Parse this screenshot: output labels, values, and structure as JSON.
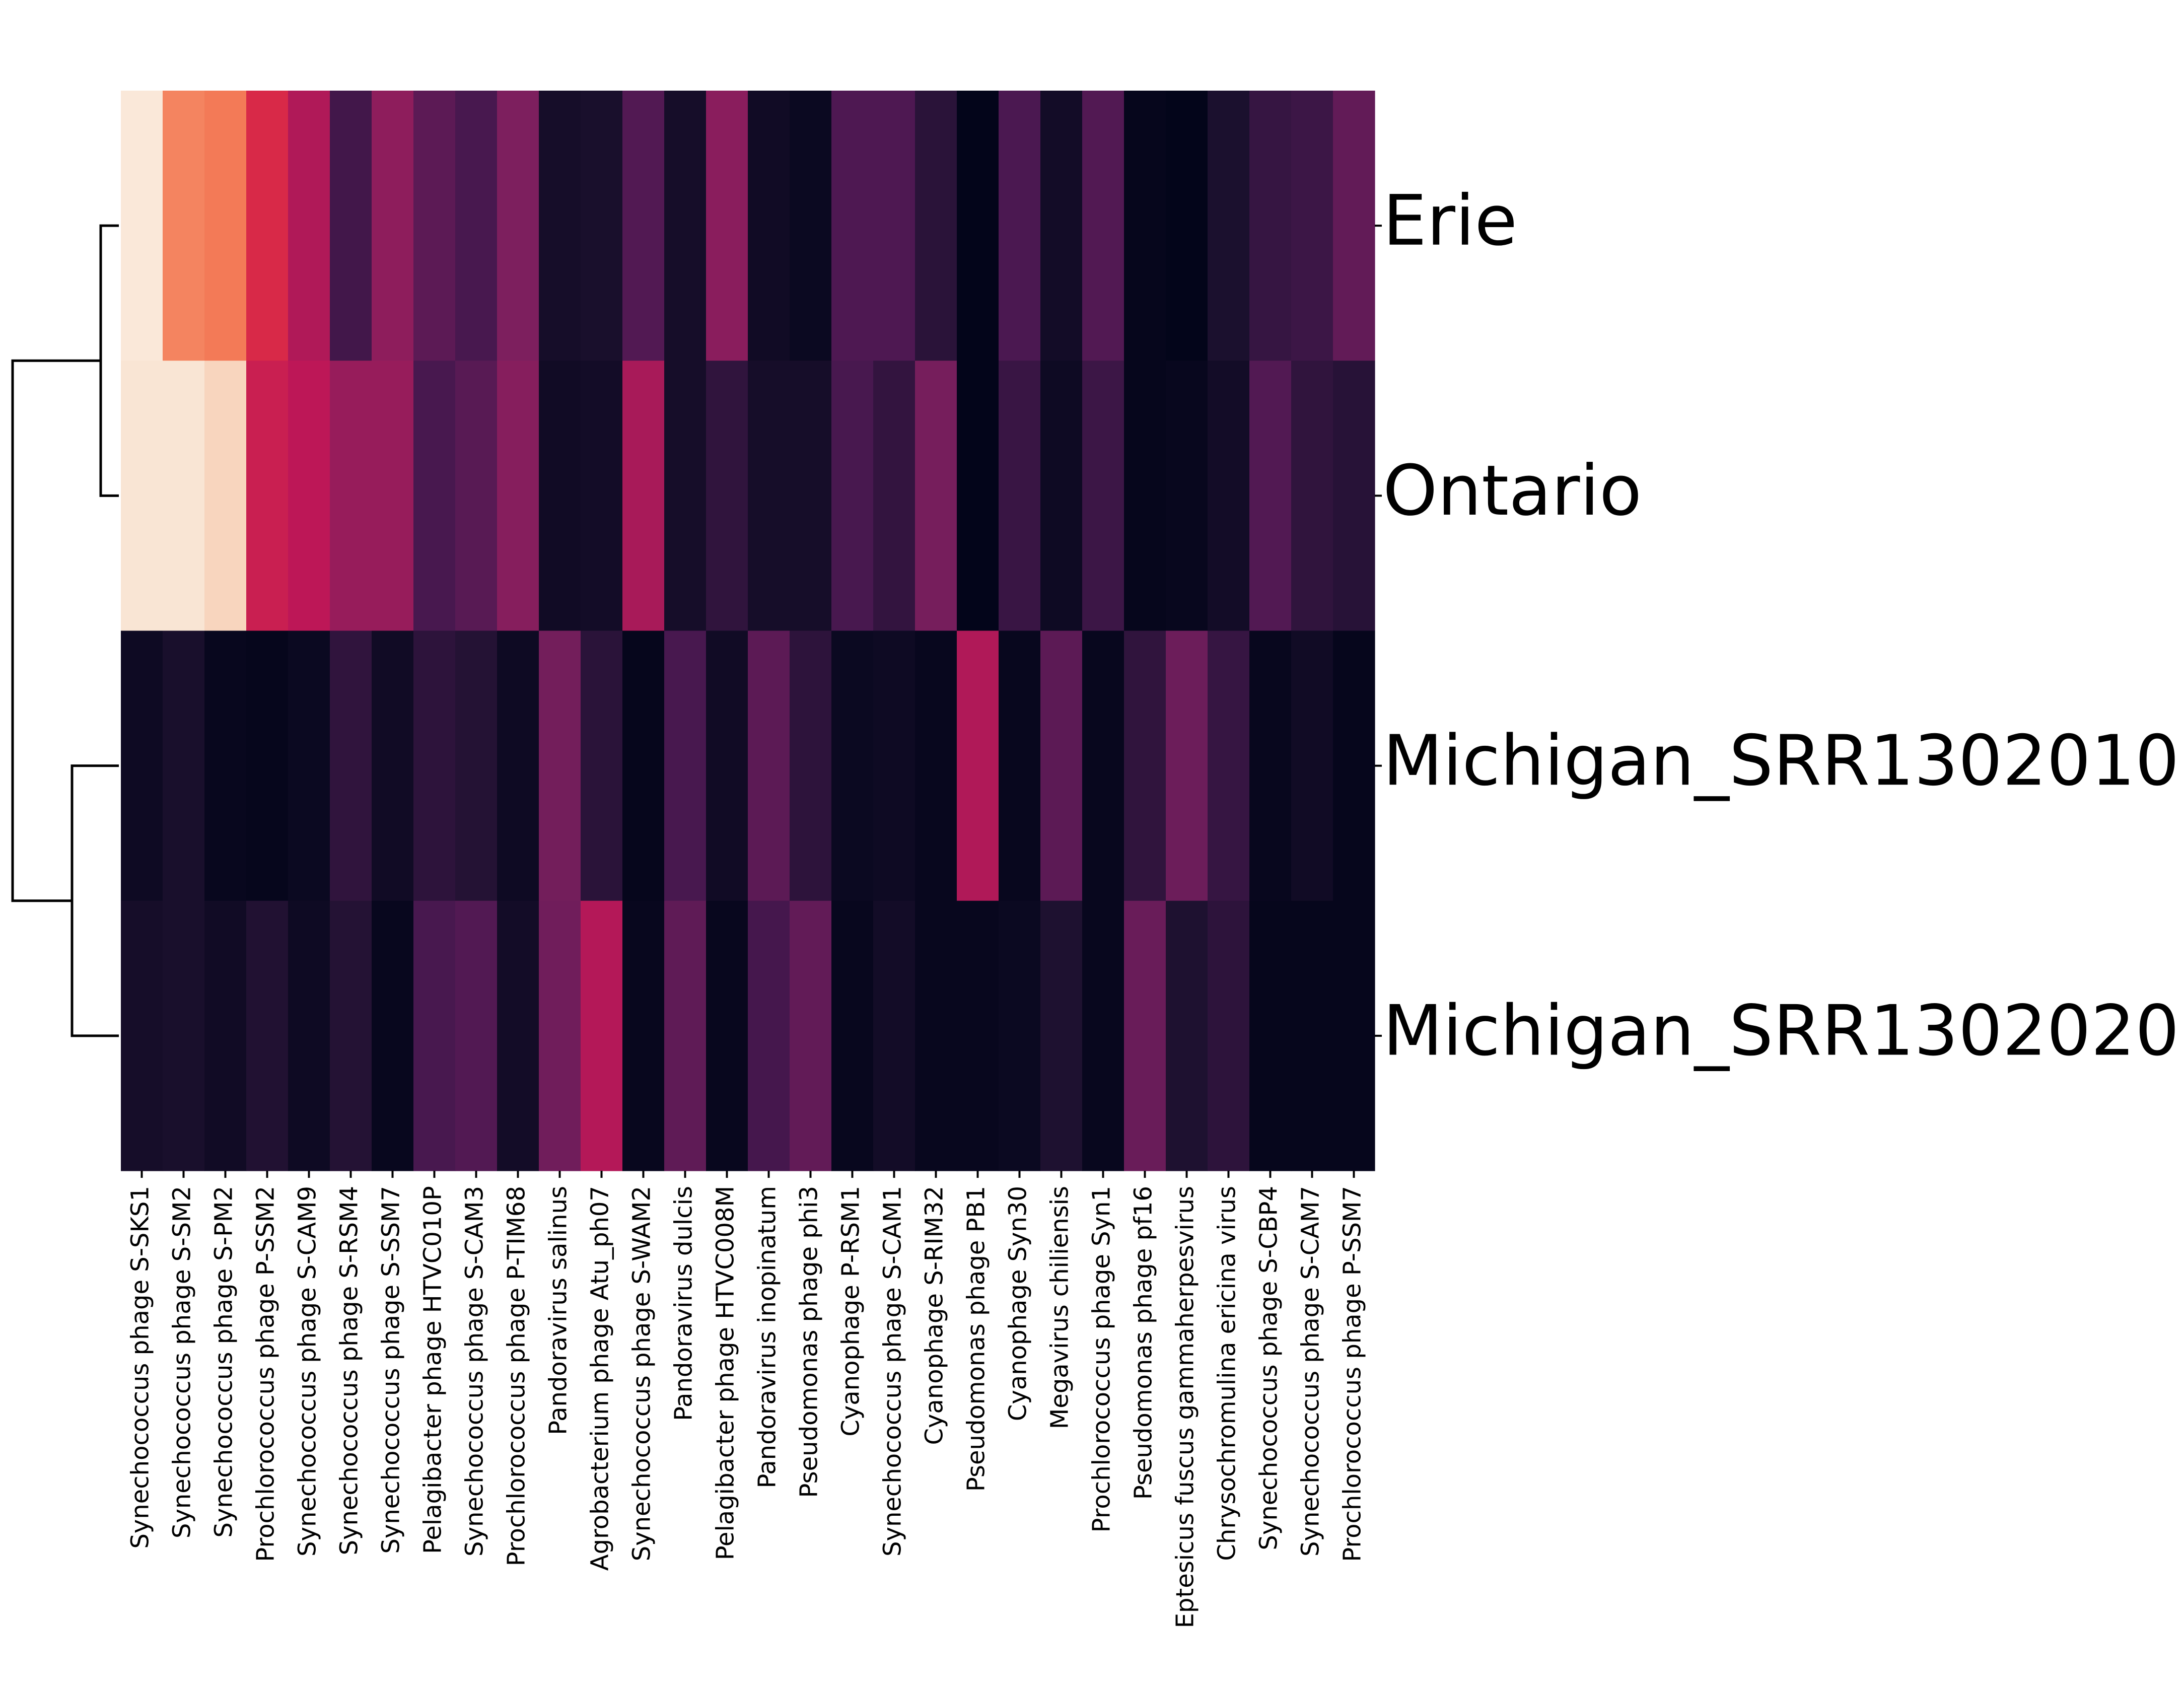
{
  "chart_data": {
    "type": "heatmap",
    "title": "",
    "xlabel": "",
    "ylabel": "",
    "row_labels": [
      "Erie",
      "Ontario",
      "Michigan_SRR1302010",
      "Michigan_SRR1302020"
    ],
    "column_labels": [
      "Synechococcus phage S-SKS1",
      "Synechococcus phage S-SM2",
      "Synechococcus phage S-PM2",
      "Prochlorococcus phage P-SSM2",
      "Synechococcus phage S-CAM9",
      "Synechococcus phage S-RSM4",
      "Synechococcus phage S-SSM7",
      "Pelagibacter phage HTVC010P",
      "Synechococcus phage S-CAM3",
      "Prochlorococcus phage P-TIM68",
      "Pandoravirus salinus",
      "Agrobacterium phage Atu_ph07",
      "Synechococcus phage S-WAM2",
      "Pandoravirus dulcis",
      "Pelagibacter phage HTVC008M",
      "Pandoravirus inopinatum",
      "Pseudomonas phage phi3",
      "Cyanophage P-RSM1",
      "Synechococcus phage S-CAM1",
      "Cyanophage S-RIM32",
      "Pseudomonas phage PB1",
      "Cyanophage Syn30",
      "Megavirus chiliensis",
      "Prochlorococcus phage Syn1",
      "Pseudomonas phage pf16",
      "Eptesicus fuscus gammaherpesvirus",
      "Chrysochromulina ericina virus",
      "Synechococcus phage S-CBP4",
      "Synechococcus phage S-CAM7",
      "Prochlorococcus phage P-SSM7"
    ],
    "values": [
      [
        0.99,
        0.78,
        0.76,
        0.62,
        0.52,
        0.22,
        0.44,
        0.3,
        0.24,
        0.4,
        0.07,
        0.08,
        0.27,
        0.07,
        0.43,
        0.05,
        0.03,
        0.26,
        0.26,
        0.14,
        0.0,
        0.25,
        0.06,
        0.27,
        0.01,
        0.0,
        0.09,
        0.18,
        0.2,
        0.32
      ],
      [
        0.98,
        0.98,
        0.93,
        0.58,
        0.55,
        0.46,
        0.46,
        0.24,
        0.29,
        0.42,
        0.05,
        0.06,
        0.5,
        0.07,
        0.16,
        0.07,
        0.07,
        0.24,
        0.17,
        0.38,
        0.0,
        0.19,
        0.04,
        0.2,
        0.01,
        0.02,
        0.06,
        0.27,
        0.16,
        0.13
      ],
      [
        0.04,
        0.08,
        0.02,
        0.01,
        0.03,
        0.16,
        0.05,
        0.15,
        0.12,
        0.04,
        0.37,
        0.14,
        0.01,
        0.24,
        0.05,
        0.3,
        0.15,
        0.03,
        0.04,
        0.02,
        0.52,
        0.02,
        0.3,
        0.02,
        0.16,
        0.35,
        0.18,
        0.02,
        0.05,
        0.01
      ],
      [
        0.07,
        0.08,
        0.05,
        0.11,
        0.04,
        0.12,
        0.02,
        0.24,
        0.27,
        0.06,
        0.36,
        0.53,
        0.02,
        0.31,
        0.02,
        0.23,
        0.32,
        0.02,
        0.06,
        0.02,
        0.02,
        0.03,
        0.1,
        0.02,
        0.34,
        0.1,
        0.15,
        0.01,
        0.01,
        0.01
      ]
    ],
    "colormap": "rocket",
    "dendrogram": "rows",
    "grid": false,
    "legend": "none"
  }
}
